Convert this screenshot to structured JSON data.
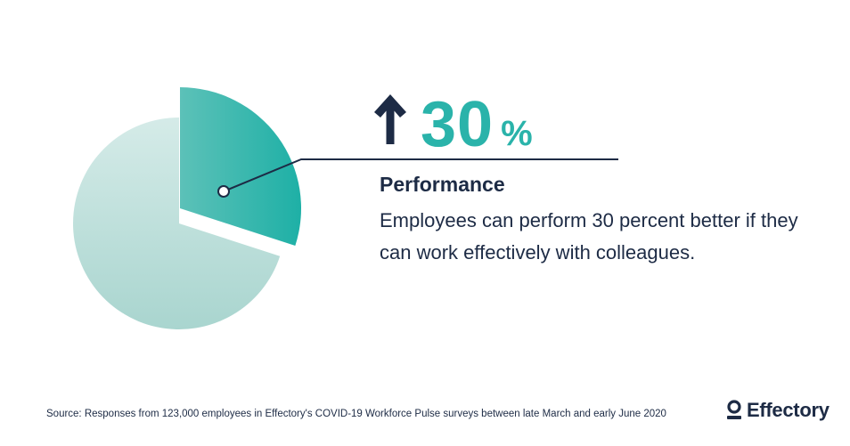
{
  "chart_data": {
    "type": "pie",
    "slices": [
      {
        "value": 30,
        "color": "#2ab3aa",
        "highlighted": true
      },
      {
        "value": 70,
        "color": "#b6dcd6",
        "highlighted": false
      }
    ]
  },
  "stat": {
    "arrow_icon": "arrow-up-icon",
    "number": "30",
    "unit": "%"
  },
  "heading": "Performance",
  "body": "Employees can perform 30 percent better if they can work effectively with colleagues.",
  "footer": {
    "source": "Source: Responses from 123,000 employees in Effectory's COVID-19 Workforce Pulse surveys between late March and early June 2020"
  },
  "logo": {
    "text": "Effectory"
  },
  "colors": {
    "accent": "#2ab3aa",
    "dark": "#1d2b45",
    "pie_light": "#b6dcd6"
  }
}
